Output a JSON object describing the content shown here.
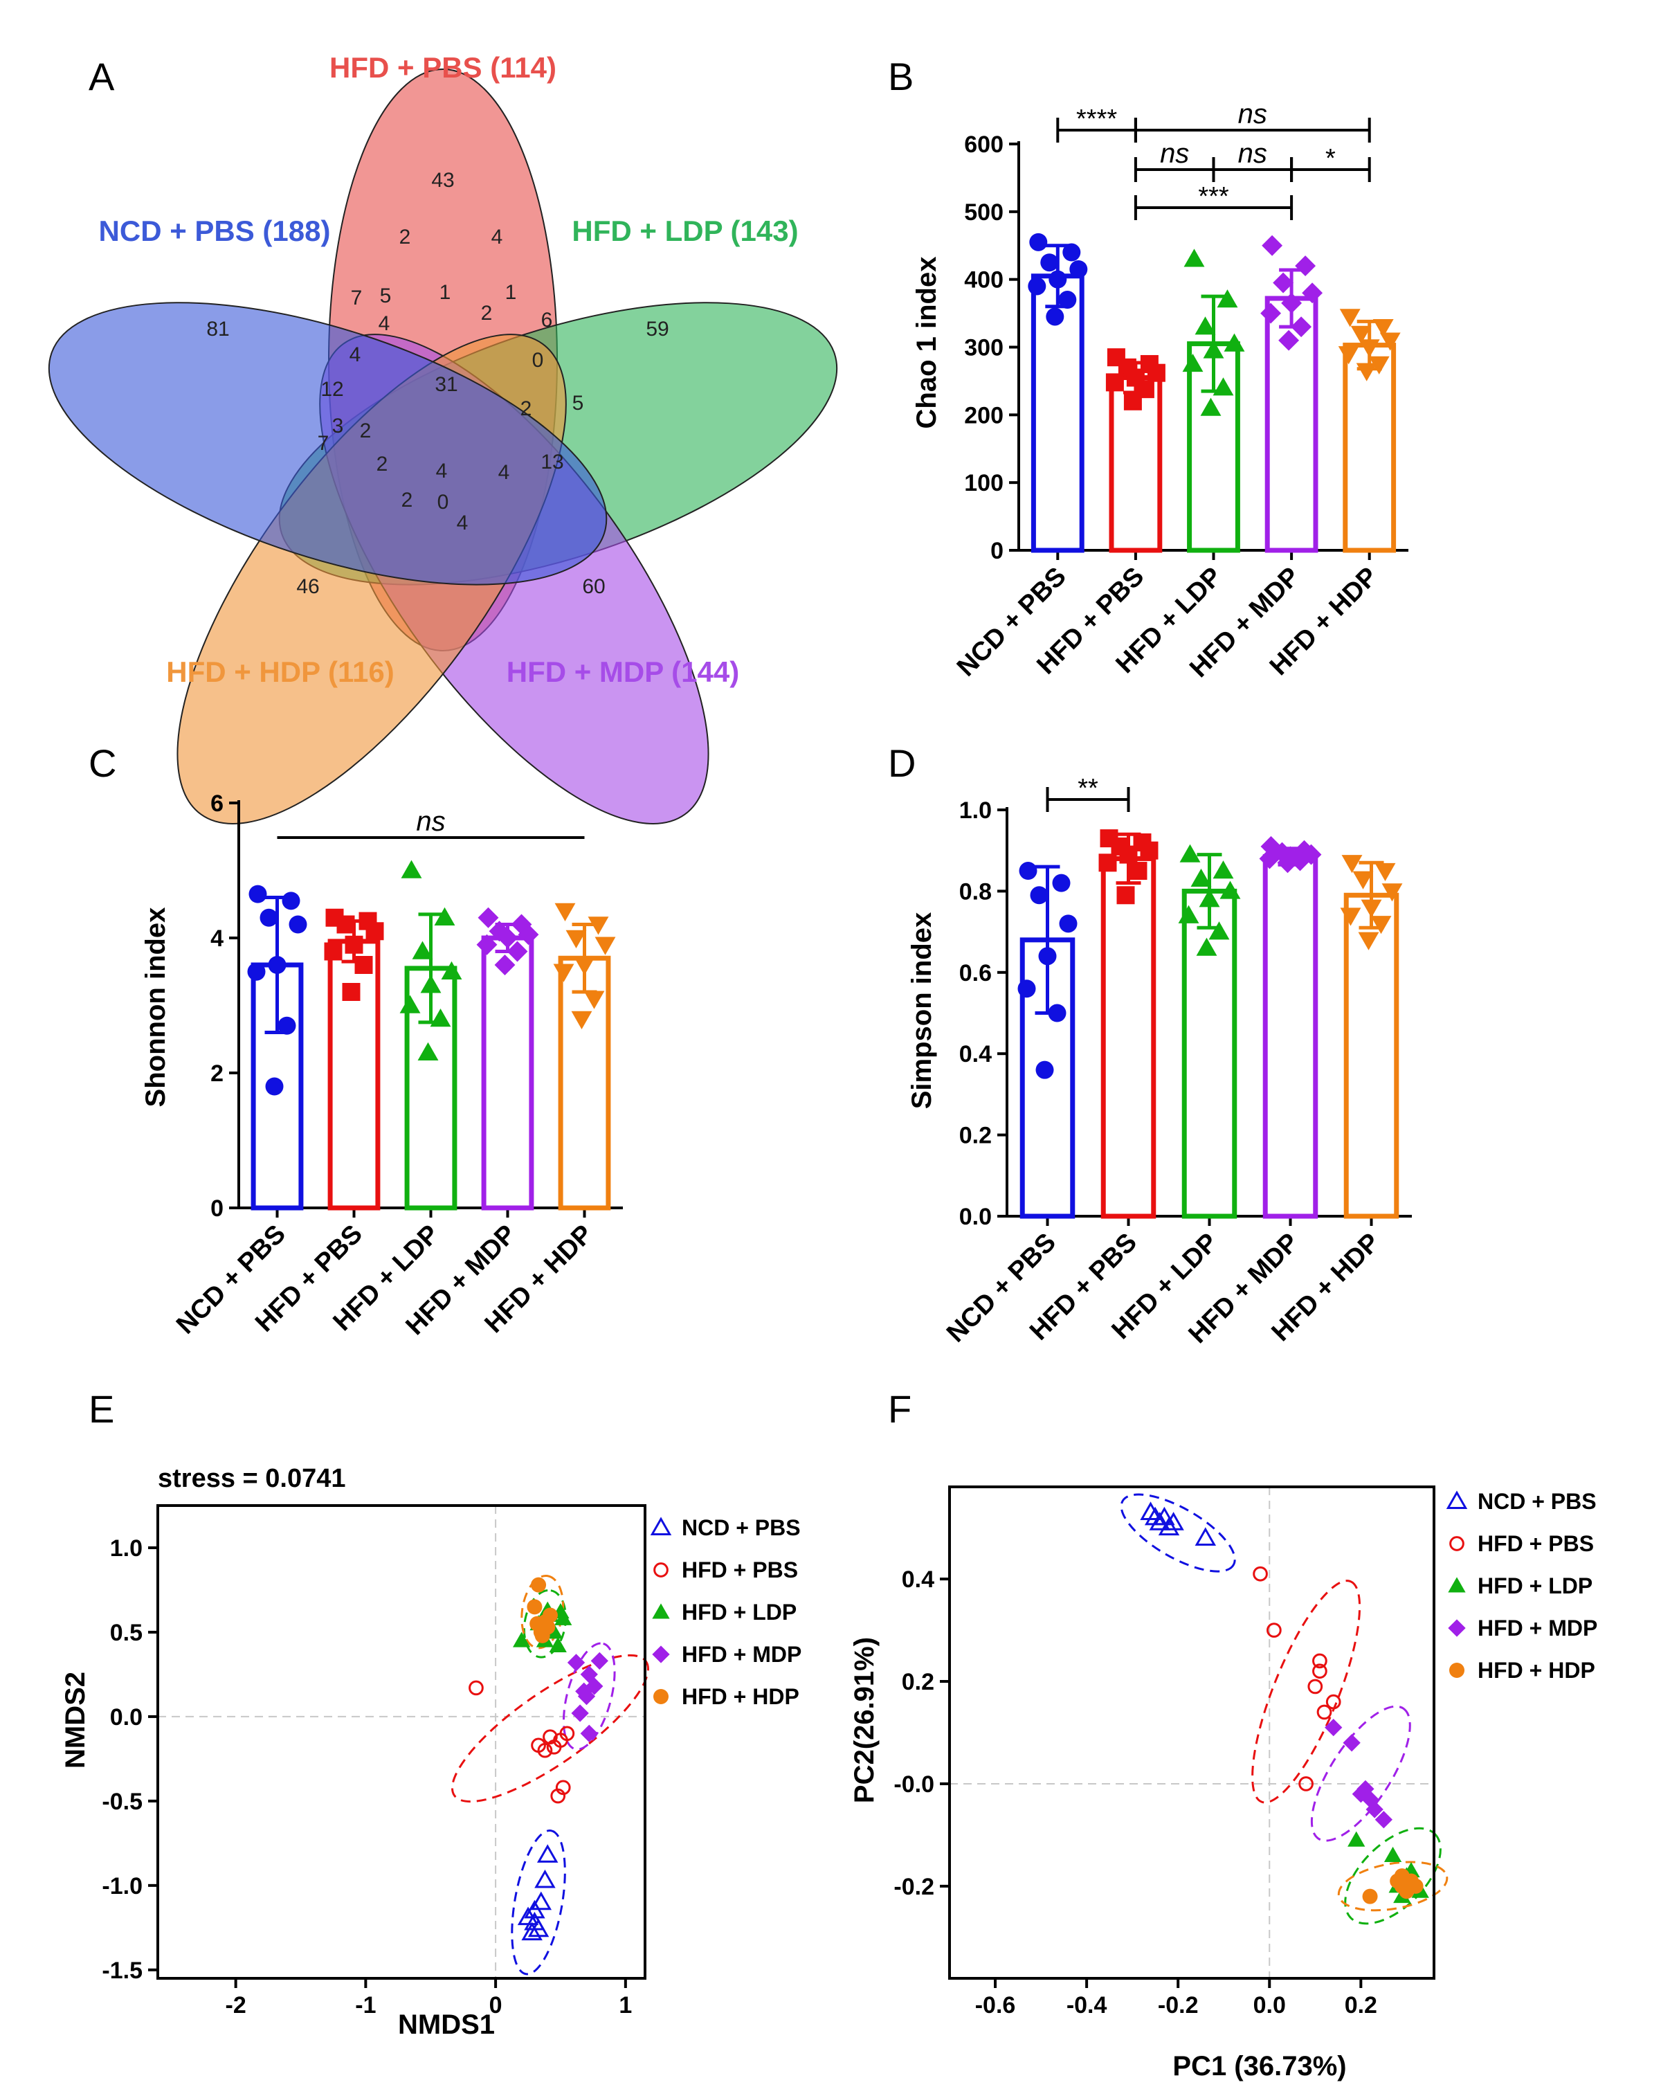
{
  "panel_letters": [
    "A",
    "B",
    "C",
    "D",
    "E",
    "F"
  ],
  "chart_data": [
    {
      "panel": "A",
      "type": "venn",
      "sets": [
        {
          "name": "HFD + PBS (114)",
          "color": "#e8504c"
        },
        {
          "name": "HFD + LDP (143)",
          "color": "#30b45a"
        },
        {
          "name": "HFD + MDP (144)",
          "color": "#a64ce8"
        },
        {
          "name": "HFD + HDP (116)",
          "color": "#f0963c"
        },
        {
          "name": "NCD + PBS (188)",
          "color": "#3c5ad8"
        }
      ],
      "region_counts": [
        "43",
        "59",
        "60",
        "46",
        "81",
        "31",
        "2",
        "4",
        "1",
        "2",
        "1",
        "6",
        "0",
        "7",
        "5",
        "4",
        "4",
        "12",
        "3",
        "2",
        "7",
        "2",
        "4",
        "13",
        "4",
        "2",
        "0",
        "4",
        "2",
        "5"
      ]
    },
    {
      "panel": "B",
      "type": "bar",
      "ylabel": "Chao 1 index",
      "ylim": [
        0,
        600
      ],
      "yticks": [
        "0",
        "100",
        "200",
        "300",
        "400",
        "500",
        "600"
      ],
      "categories": [
        "NCD + PBS",
        "HFD + PBS",
        "HFD + LDP",
        "HFD + MDP",
        "HFD + HDP"
      ],
      "colors": [
        "#1010e0",
        "#e81010",
        "#10b010",
        "#a020e8",
        "#f08010"
      ],
      "markers": [
        "circle",
        "square",
        "triangle",
        "diamond",
        "invtriangle"
      ],
      "values": [
        405,
        255,
        305,
        372,
        303
      ],
      "errors": [
        45,
        22,
        70,
        42,
        35
      ],
      "points": [
        [
          455,
          440,
          425,
          415,
          400,
          390,
          370,
          345
        ],
        [
          285,
          275,
          270,
          262,
          255,
          248,
          238,
          220
        ],
        [
          430,
          370,
          330,
          305,
          295,
          275,
          240,
          210
        ],
        [
          450,
          420,
          395,
          380,
          365,
          350,
          330,
          310
        ],
        [
          345,
          330,
          320,
          310,
          300,
          290,
          275,
          265
        ]
      ],
      "significance": [
        {
          "from": 0,
          "to": 1,
          "level": 0,
          "label": "****"
        },
        {
          "from": 1,
          "to": 4,
          "level": 0,
          "label": "ns"
        },
        {
          "from": 1,
          "to": 2,
          "level": 1,
          "label": "ns"
        },
        {
          "from": 2,
          "to": 3,
          "level": 1,
          "label": "ns"
        },
        {
          "from": 3,
          "to": 4,
          "level": 1,
          "label": "*"
        },
        {
          "from": 1,
          "to": 3,
          "level": 2,
          "label": "***"
        }
      ]
    },
    {
      "panel": "C",
      "type": "bar",
      "ylabel": "Shonnon index",
      "ylim": [
        0,
        6
      ],
      "yticks": [
        "0",
        "2",
        "4",
        "6"
      ],
      "categories": [
        "NCD + PBS",
        "HFD + PBS",
        "HFD + LDP",
        "HFD + MDP",
        "HFD + HDP"
      ],
      "colors": [
        "#1010e0",
        "#e81010",
        "#10b010",
        "#a020e8",
        "#f08010"
      ],
      "markers": [
        "circle",
        "square",
        "triangle",
        "diamond",
        "invtriangle"
      ],
      "values": [
        3.6,
        3.95,
        3.55,
        4.0,
        3.7
      ],
      "errors": [
        1.0,
        0.3,
        0.8,
        0.2,
        0.5
      ],
      "points": [
        [
          4.65,
          4.55,
          4.3,
          4.2,
          3.6,
          3.5,
          2.7,
          1.8
        ],
        [
          4.3,
          4.25,
          4.2,
          4.1,
          3.9,
          3.8,
          3.6,
          3.2
        ],
        [
          5.0,
          4.3,
          3.8,
          3.5,
          3.3,
          3.0,
          2.8,
          2.3
        ],
        [
          4.3,
          4.2,
          4.1,
          4.05,
          4.0,
          3.9,
          3.8,
          3.6
        ],
        [
          4.4,
          4.2,
          4.0,
          3.9,
          3.6,
          3.5,
          3.1,
          2.8
        ]
      ],
      "significance": [
        {
          "from": 0,
          "to": 4,
          "level": 0,
          "label": "ns",
          "bare": true
        }
      ]
    },
    {
      "panel": "D",
      "type": "bar",
      "ylabel": "Simpson index",
      "ylim": [
        0,
        1.0
      ],
      "yticks": [
        "0.0",
        "0.2",
        "0.4",
        "0.6",
        "0.8",
        "1.0"
      ],
      "categories": [
        "NCD + PBS",
        "HFD + PBS",
        "HFD + LDP",
        "HFD + MDP",
        "HFD + HDP"
      ],
      "colors": [
        "#1010e0",
        "#e81010",
        "#10b010",
        "#a020e8",
        "#f08010"
      ],
      "markers": [
        "circle",
        "square",
        "triangle",
        "diamond",
        "invtriangle"
      ],
      "values": [
        0.68,
        0.88,
        0.8,
        0.885,
        0.79
      ],
      "errors": [
        0.18,
        0.06,
        0.09,
        0.02,
        0.08
      ],
      "points": [
        [
          0.85,
          0.82,
          0.79,
          0.72,
          0.64,
          0.56,
          0.5,
          0.36
        ],
        [
          0.93,
          0.92,
          0.91,
          0.9,
          0.89,
          0.87,
          0.85,
          0.79
        ],
        [
          0.89,
          0.85,
          0.83,
          0.8,
          0.78,
          0.74,
          0.7,
          0.66
        ],
        [
          0.91,
          0.9,
          0.895,
          0.89,
          0.885,
          0.88,
          0.875,
          0.87
        ],
        [
          0.87,
          0.85,
          0.83,
          0.8,
          0.76,
          0.74,
          0.72,
          0.68
        ]
      ],
      "significance": [
        {
          "from": 0,
          "to": 1,
          "level": 0,
          "label": "**"
        }
      ]
    },
    {
      "panel": "E",
      "type": "scatter",
      "title": "stress = 0.0741",
      "xlabel": "NMDS1",
      "ylabel": "NMDS2",
      "xlim": [
        -2.6,
        1.15
      ],
      "ylim": [
        -1.55,
        1.25
      ],
      "xticks": [
        {
          "v": -2,
          "l": "-2"
        },
        {
          "v": -1,
          "l": "-1"
        },
        {
          "v": 0,
          "l": "0"
        },
        {
          "v": 1,
          "l": "1"
        }
      ],
      "yticks": [
        {
          "v": 1.0,
          "l": "1.0"
        },
        {
          "v": 0.5,
          "l": "0.5"
        },
        {
          "v": 0.0,
          "l": "0.0"
        },
        {
          "v": -0.5,
          "l": "-0.5"
        },
        {
          "v": -1.0,
          "l": "-1.0"
        },
        {
          "v": -1.5,
          "l": "-1.5"
        }
      ],
      "series": [
        {
          "name": "NCD + PBS",
          "color": "#1010e0",
          "marker": "opentriangle",
          "points": [
            [
              0.4,
              -0.82
            ],
            [
              0.38,
              -0.97
            ],
            [
              0.35,
              -1.1
            ],
            [
              0.3,
              -1.15
            ],
            [
              0.25,
              -1.19
            ],
            [
              0.3,
              -1.22
            ],
            [
              0.33,
              -1.26
            ],
            [
              0.28,
              -1.28
            ]
          ],
          "ellipse": {
            "cx": 0.33,
            "cy": -1.1,
            "rx": 0.56,
            "ry": 0.14,
            "rot": -80
          }
        },
        {
          "name": "HFD + PBS",
          "color": "#e81010",
          "marker": "opencircle",
          "points": [
            [
              -0.15,
              0.17
            ],
            [
              0.33,
              -0.17
            ],
            [
              0.42,
              -0.12
            ],
            [
              0.5,
              -0.14
            ],
            [
              0.38,
              -0.2
            ],
            [
              0.45,
              -0.18
            ],
            [
              0.55,
              -0.1
            ],
            [
              0.52,
              -0.42
            ],
            [
              0.48,
              -0.47
            ]
          ],
          "ellipse": {
            "cx": 0.42,
            "cy": -0.07,
            "rx": 0.9,
            "ry": 0.21,
            "rot": -35
          }
        },
        {
          "name": "HFD + LDP",
          "color": "#10b010",
          "marker": "triangle",
          "points": [
            [
              0.2,
              0.45
            ],
            [
              0.33,
              0.55
            ],
            [
              0.42,
              0.6
            ],
            [
              0.5,
              0.62
            ],
            [
              0.38,
              0.45
            ],
            [
              0.45,
              0.5
            ],
            [
              0.52,
              0.58
            ],
            [
              0.48,
              0.42
            ],
            [
              0.4,
              0.63
            ]
          ],
          "ellipse": {
            "cx": 0.38,
            "cy": 0.55,
            "rx": 0.26,
            "ry": 0.12,
            "rot": -80
          }
        },
        {
          "name": "HFD + MDP",
          "color": "#a020e8",
          "marker": "diamond",
          "points": [
            [
              0.62,
              0.32
            ],
            [
              0.72,
              0.25
            ],
            [
              0.8,
              0.33
            ],
            [
              0.68,
              0.15
            ],
            [
              0.76,
              0.18
            ],
            [
              0.65,
              0.02
            ],
            [
              0.72,
              -0.1
            ],
            [
              0.7,
              0.12
            ]
          ],
          "ellipse": {
            "cx": 0.72,
            "cy": 0.12,
            "rx": 0.42,
            "ry": 0.13,
            "rot": -75
          }
        },
        {
          "name": "HFD + HDP",
          "color": "#f08010",
          "marker": "circle",
          "points": [
            [
              0.33,
              0.78
            ],
            [
              0.3,
              0.65
            ],
            [
              0.32,
              0.55
            ],
            [
              0.35,
              0.5
            ],
            [
              0.38,
              0.56
            ],
            [
              0.42,
              0.6
            ],
            [
              0.36,
              0.48
            ],
            [
              0.4,
              0.53
            ]
          ],
          "ellipse": {
            "cx": 0.36,
            "cy": 0.62,
            "rx": 0.28,
            "ry": 0.12,
            "rot": -82
          }
        }
      ]
    },
    {
      "panel": "F",
      "type": "scatter",
      "xlabel": "PC1 (36.73%)",
      "ylabel": "PC2(26.91%)",
      "xlim": [
        -0.7,
        0.36
      ],
      "ylim": [
        -0.38,
        0.58
      ],
      "xticks": [
        {
          "v": -0.6,
          "l": "-0.6"
        },
        {
          "v": -0.4,
          "l": "-0.4"
        },
        {
          "v": -0.2,
          "l": "-0.2"
        },
        {
          "v": 0.0,
          "l": "0.0"
        },
        {
          "v": 0.2,
          "l": "0.2"
        }
      ],
      "yticks": [
        {
          "v": 0.4,
          "l": "0.4"
        },
        {
          "v": 0.2,
          "l": "0.2"
        },
        {
          "v": 0.0,
          "l": "-0.0"
        },
        {
          "v": -0.2,
          "l": "-0.2"
        }
      ],
      "series": [
        {
          "name": "NCD + PBS",
          "color": "#1010e0",
          "marker": "opentriangle",
          "points": [
            [
              -0.26,
              0.53
            ],
            [
              -0.25,
              0.52
            ],
            [
              -0.24,
              0.51
            ],
            [
              -0.23,
              0.52
            ],
            [
              -0.22,
              0.5
            ],
            [
              -0.21,
              0.51
            ],
            [
              -0.14,
              0.48
            ]
          ],
          "ellipse": {
            "cx": -0.2,
            "cy": 0.49,
            "rx": 0.14,
            "ry": 0.048,
            "rot": 30
          }
        },
        {
          "name": "HFD + PBS",
          "color": "#e81010",
          "marker": "opencircle",
          "points": [
            [
              -0.02,
              0.41
            ],
            [
              0.01,
              0.3
            ],
            [
              0.1,
              0.19
            ],
            [
              0.11,
              0.22
            ],
            [
              0.12,
              0.14
            ],
            [
              0.14,
              0.16
            ],
            [
              0.08,
              0.0
            ],
            [
              0.11,
              0.24
            ]
          ],
          "ellipse": {
            "cx": 0.08,
            "cy": 0.18,
            "rx": 0.26,
            "ry": 0.063,
            "rot": -68
          }
        },
        {
          "name": "HFD + LDP",
          "color": "#10b010",
          "marker": "triangle",
          "points": [
            [
              0.27,
              -0.14
            ],
            [
              0.3,
              -0.18
            ],
            [
              0.32,
              -0.2
            ],
            [
              0.29,
              -0.22
            ],
            [
              0.31,
              -0.17
            ],
            [
              0.19,
              -0.11
            ],
            [
              0.33,
              -0.21
            ],
            [
              0.28,
              -0.2
            ]
          ],
          "ellipse": {
            "cx": 0.27,
            "cy": -0.18,
            "rx": 0.13,
            "ry": 0.062,
            "rot": -45
          }
        },
        {
          "name": "HFD + MDP",
          "color": "#a020e8",
          "marker": "diamond",
          "points": [
            [
              0.14,
              0.11
            ],
            [
              0.18,
              0.08
            ],
            [
              0.21,
              -0.01
            ],
            [
              0.22,
              -0.03
            ],
            [
              0.23,
              -0.05
            ],
            [
              0.25,
              -0.07
            ],
            [
              0.2,
              -0.02
            ]
          ],
          "ellipse": {
            "cx": 0.2,
            "cy": 0.02,
            "rx": 0.17,
            "ry": 0.058,
            "rot": -57
          }
        },
        {
          "name": "HFD + HDP",
          "color": "#f08010",
          "marker": "circle",
          "points": [
            [
              0.28,
              -0.19
            ],
            [
              0.29,
              -0.2
            ],
            [
              0.3,
              -0.2
            ],
            [
              0.31,
              -0.19
            ],
            [
              0.3,
              -0.21
            ],
            [
              0.32,
              -0.2
            ],
            [
              0.22,
              -0.22
            ],
            [
              0.29,
              -0.18
            ]
          ],
          "ellipse": {
            "cx": 0.27,
            "cy": -0.2,
            "rx": 0.12,
            "ry": 0.044,
            "rot": -10
          }
        }
      ]
    }
  ]
}
